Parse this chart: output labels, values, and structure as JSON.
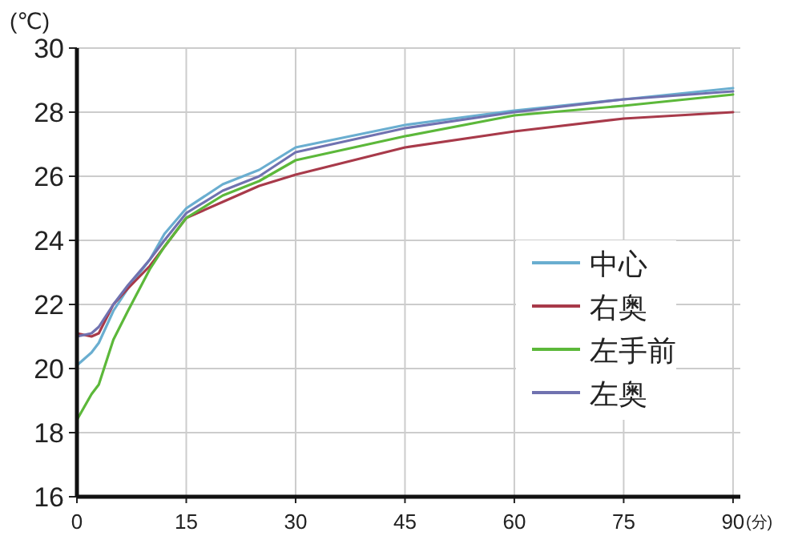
{
  "chart_data": {
    "type": "line",
    "ylabel": "(℃)",
    "xlabel": "(分)",
    "x": [
      0,
      2,
      3,
      5,
      7,
      10,
      12,
      15,
      20,
      25,
      30,
      45,
      60,
      75,
      90
    ],
    "xlim": [
      0,
      91
    ],
    "xticks": [
      0,
      15,
      30,
      45,
      60,
      75,
      90
    ],
    "ylim": [
      16,
      30
    ],
    "yticks": [
      16,
      18,
      20,
      22,
      24,
      26,
      28,
      30
    ],
    "grid": true,
    "legend": "right",
    "marker": "none",
    "line_style": "solid",
    "series": [
      {
        "name": "中心",
        "color": "#6aaed0",
        "values": [
          20.1,
          20.5,
          20.8,
          21.8,
          22.5,
          23.4,
          24.2,
          25.0,
          25.75,
          26.2,
          26.9,
          27.6,
          28.05,
          28.4,
          28.75
        ]
      },
      {
        "name": "右奥",
        "color": "#a83a4a",
        "values": [
          21.1,
          21.0,
          21.1,
          22.0,
          22.5,
          23.2,
          23.8,
          24.7,
          25.2,
          25.7,
          26.05,
          26.9,
          27.4,
          27.8,
          28.0
        ]
      },
      {
        "name": "左手前",
        "color": "#5cb83a",
        "values": [
          18.4,
          19.2,
          19.5,
          20.9,
          21.8,
          23.1,
          23.8,
          24.7,
          25.4,
          25.85,
          26.5,
          27.25,
          27.9,
          28.2,
          28.55
        ]
      },
      {
        "name": "左奥",
        "color": "#7072b0",
        "values": [
          21.0,
          21.1,
          21.3,
          22.0,
          22.6,
          23.4,
          24.0,
          24.85,
          25.55,
          26.0,
          26.75,
          27.5,
          28.0,
          28.4,
          28.65
        ]
      }
    ]
  }
}
